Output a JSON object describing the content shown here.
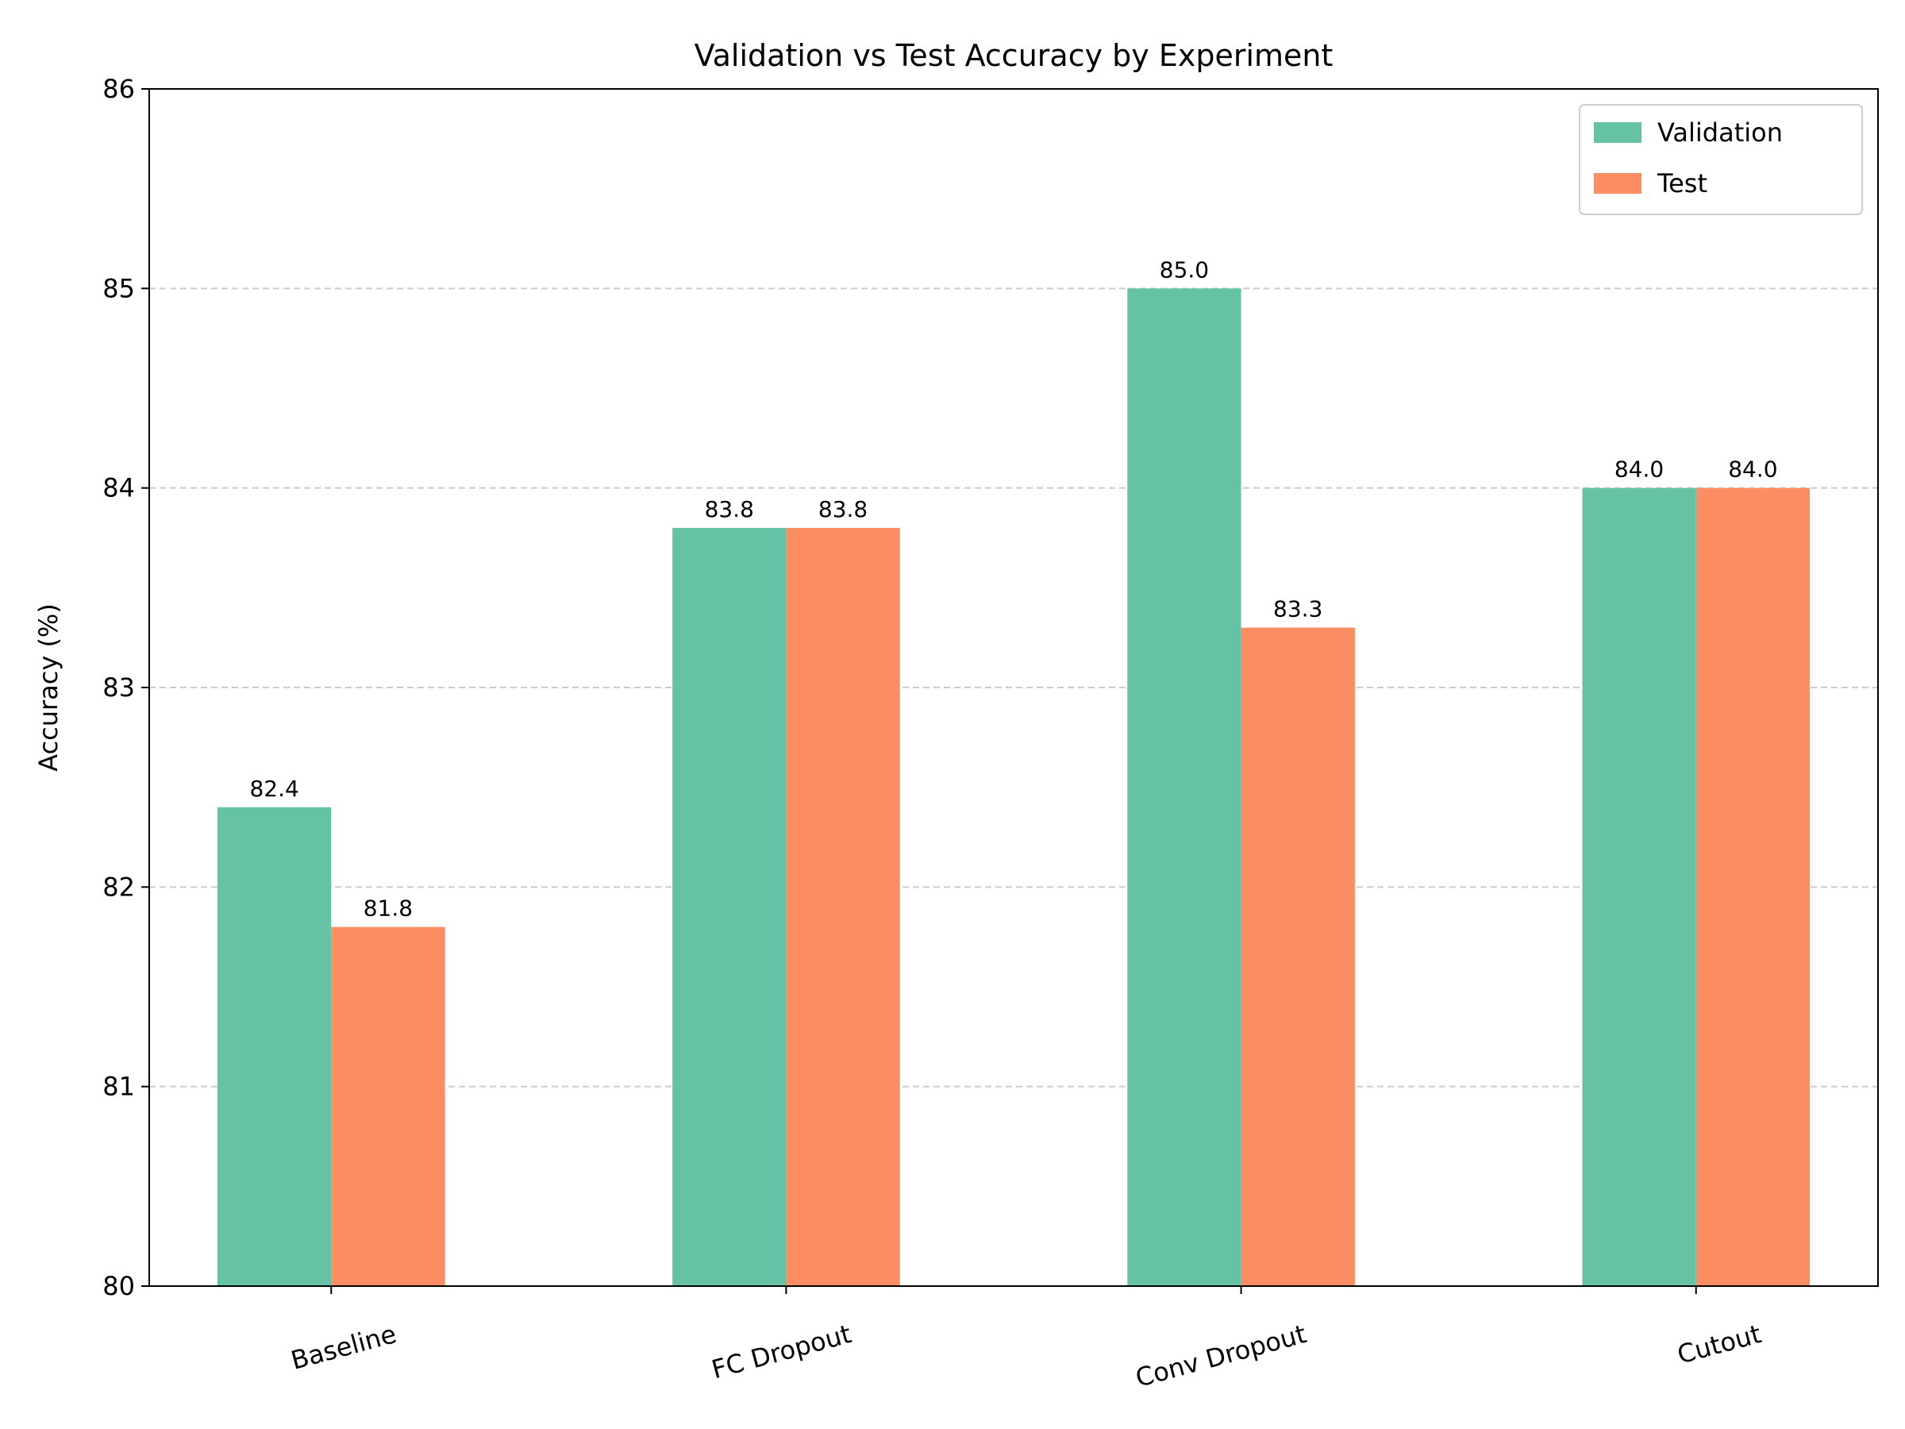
{
  "chart_data": {
    "type": "bar",
    "title": "Validation vs Test Accuracy by Experiment",
    "xlabel": "",
    "ylabel": "Accuracy (%)",
    "categories": [
      "Baseline",
      "FC Dropout",
      "Conv Dropout",
      "Cutout"
    ],
    "series": [
      {
        "name": "Validation",
        "values": [
          82.4,
          83.8,
          85.0,
          84.0
        ],
        "color": "#66c2a5"
      },
      {
        "name": "Test",
        "values": [
          81.8,
          83.8,
          83.3,
          84.0
        ],
        "color": "#fc8d62"
      }
    ],
    "value_labels": [
      [
        "82.4",
        "83.8",
        "85.0",
        "84.0"
      ],
      [
        "81.8",
        "83.8",
        "83.3",
        "84.0"
      ]
    ],
    "ylim": [
      80,
      86
    ],
    "yticks": [
      80,
      81,
      82,
      83,
      84,
      85,
      86
    ],
    "ytick_labels": [
      "80",
      "81",
      "82",
      "83",
      "84",
      "85",
      "86"
    ],
    "grid": "y-dashed",
    "legend_position": "top-right",
    "xtick_rotation_deg": -15
  }
}
